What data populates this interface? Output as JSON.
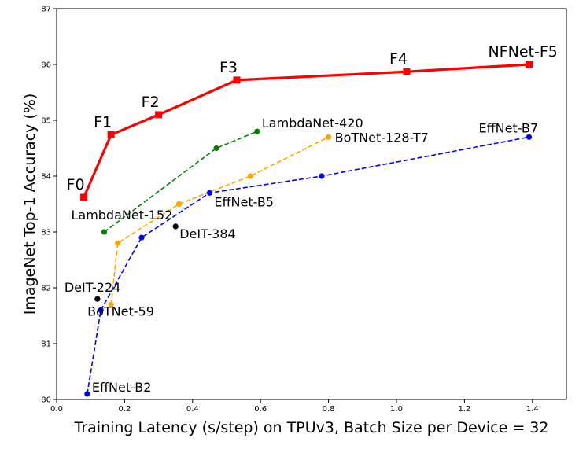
{
  "chart_data": {
    "type": "line",
    "xlabel": "Training Latency (s/step) on TPUv3, Batch Size per Device = 32",
    "ylabel": "ImageNet Top-1 Accuracy (%)",
    "xlim": [
      0.0,
      1.5
    ],
    "ylim": [
      80,
      87
    ],
    "xticks": [
      "0.0",
      "0.2",
      "0.4",
      "0.6",
      "0.8",
      "1.0",
      "1.2",
      "1.4"
    ],
    "yticks": [
      "80",
      "81",
      "82",
      "83",
      "84",
      "85",
      "86",
      "87"
    ],
    "grid": false,
    "series": [
      {
        "key": "nfnet",
        "color": "#ff0000",
        "linestyle": "solid",
        "marker": "square",
        "points": [
          {
            "x": 0.08,
            "y": 83.62,
            "label": "F0"
          },
          {
            "x": 0.16,
            "y": 84.74,
            "label": "F1"
          },
          {
            "x": 0.3,
            "y": 85.1,
            "label": "F2"
          },
          {
            "x": 0.53,
            "y": 85.72,
            "label": "F3"
          },
          {
            "x": 1.03,
            "y": 85.87,
            "label": "F4"
          },
          {
            "x": 1.39,
            "y": 86.0,
            "label": "NFNet-F5"
          }
        ]
      },
      {
        "key": "lambdanet",
        "color": "#008000",
        "linestyle": "dashed",
        "marker": "circle",
        "points": [
          {
            "x": 0.14,
            "y": 83.0,
            "label": "LambdaNet-152"
          },
          {
            "x": 0.47,
            "y": 84.5,
            "label": ""
          },
          {
            "x": 0.59,
            "y": 84.8,
            "label": "LambdaNet-420"
          }
        ]
      },
      {
        "key": "botnet",
        "color": "#ffa500",
        "linestyle": "dashed",
        "marker": "circle",
        "points": [
          {
            "x": 0.16,
            "y": 81.7,
            "label": "BoTNet-59"
          },
          {
            "x": 0.18,
            "y": 82.8,
            "label": ""
          },
          {
            "x": 0.36,
            "y": 83.5,
            "label": ""
          },
          {
            "x": 0.57,
            "y": 84.0,
            "label": ""
          },
          {
            "x": 0.8,
            "y": 84.7,
            "label": "BoTNet-128-T7"
          }
        ]
      },
      {
        "key": "effnet",
        "color": "#0000ff",
        "linestyle": "dashed",
        "marker": "circle",
        "points": [
          {
            "x": 0.09,
            "y": 80.1,
            "label": "EffNet-B2"
          },
          {
            "x": 0.13,
            "y": 81.6,
            "label": ""
          },
          {
            "x": 0.25,
            "y": 82.9,
            "label": ""
          },
          {
            "x": 0.45,
            "y": 83.7,
            "label": "EffNet-B5"
          },
          {
            "x": 0.78,
            "y": 84.0,
            "label": ""
          },
          {
            "x": 1.39,
            "y": 84.7,
            "label": "EffNet-B7"
          }
        ]
      }
    ],
    "standalone_points": [
      {
        "x": 0.12,
        "y": 81.8,
        "label": "DeIT-224",
        "color": "#000000"
      },
      {
        "x": 0.35,
        "y": 83.1,
        "label": "DeIT-384",
        "color": "#000000"
      }
    ]
  }
}
